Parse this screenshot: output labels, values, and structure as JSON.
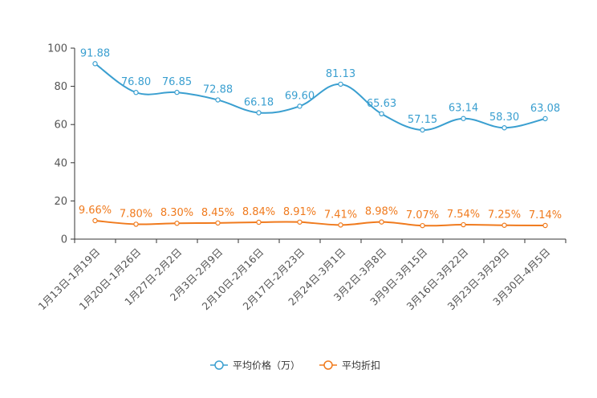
{
  "chart_data": {
    "type": "line",
    "title": "",
    "xlabel": "",
    "ylabel": "",
    "ylim": [
      0,
      100
    ],
    "yticks": [
      "0",
      "20",
      "40",
      "60",
      "80",
      "100"
    ],
    "categories": [
      "1月13日-1月19日",
      "1月20日-1月26日",
      "1月27日-2月2日",
      "2月3日-2月9日",
      "2月10日-2月16日",
      "2月17日-2月23日",
      "2月24日-3月1日",
      "3月2日-3月8日",
      "3月9日-3月15日",
      "3月16日-3月22日",
      "3月23日-3月29日",
      "3月30日-4月5日"
    ],
    "series": [
      {
        "name": "平均价格（万）",
        "color": "#3a9fd0",
        "values": [
          91.88,
          76.8,
          76.85,
          72.88,
          66.18,
          69.6,
          81.13,
          65.63,
          57.15,
          63.14,
          58.3,
          63.08
        ],
        "labels": [
          "91.88",
          "76.80",
          "76.85",
          "72.88",
          "66.18",
          "69.60",
          "81.13",
          "65.63",
          "57.15",
          "63.14",
          "58.30",
          "63.08"
        ]
      },
      {
        "name": "平均折扣",
        "color": "#f07a1d",
        "values": [
          9.66,
          7.8,
          8.3,
          8.45,
          8.84,
          8.91,
          7.41,
          8.98,
          7.07,
          7.54,
          7.25,
          7.14
        ],
        "labels": [
          "9.66%",
          "7.80%",
          "8.30%",
          "8.45%",
          "8.84%",
          "8.91%",
          "7.41%",
          "8.98%",
          "7.07%",
          "7.54%",
          "7.25%",
          "7.14%"
        ]
      }
    ],
    "legend": "bottom-center",
    "grid": false
  }
}
